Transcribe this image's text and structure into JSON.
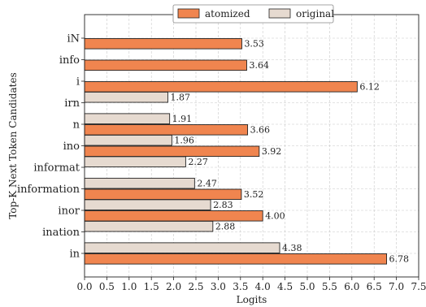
{
  "chart_data": {
    "type": "bar",
    "orientation": "horizontal",
    "xlabel": "Logits",
    "ylabel": "Top-K Next Token Candidates",
    "xlim": [
      0,
      7.5
    ],
    "xticks": [
      "0.0",
      "0.5",
      "1.0",
      "1.5",
      "2.0",
      "2.5",
      "3.0",
      "3.5",
      "4.0",
      "4.5",
      "5.0",
      "5.5",
      "6.0",
      "6.5",
      "7.0",
      "7.5"
    ],
    "grid": true,
    "legend_position": "top-center",
    "categories": [
      "iN",
      "info",
      "i",
      "irn",
      "n",
      "ino",
      "informat",
      "information",
      "inor",
      "ination",
      "in"
    ],
    "series": [
      {
        "name": "atomized",
        "color": "#f0854f",
        "values": [
          3.53,
          3.64,
          6.12,
          null,
          3.66,
          3.92,
          null,
          3.52,
          4.0,
          null,
          6.78
        ]
      },
      {
        "name": "original",
        "color": "#e6dad0",
        "values": [
          null,
          null,
          null,
          1.87,
          1.91,
          1.96,
          2.27,
          2.47,
          2.83,
          2.88,
          4.38
        ]
      }
    ],
    "value_labels": {
      "atomized": [
        "3.53",
        "3.64",
        "6.12",
        "",
        "3.66",
        "3.92",
        "",
        "3.52",
        "4.00",
        "",
        "6.78"
      ],
      "original": [
        "",
        "",
        "",
        "1.87",
        "1.91",
        "1.96",
        "2.27",
        "2.47",
        "2.83",
        "2.88",
        "4.38"
      ]
    }
  }
}
